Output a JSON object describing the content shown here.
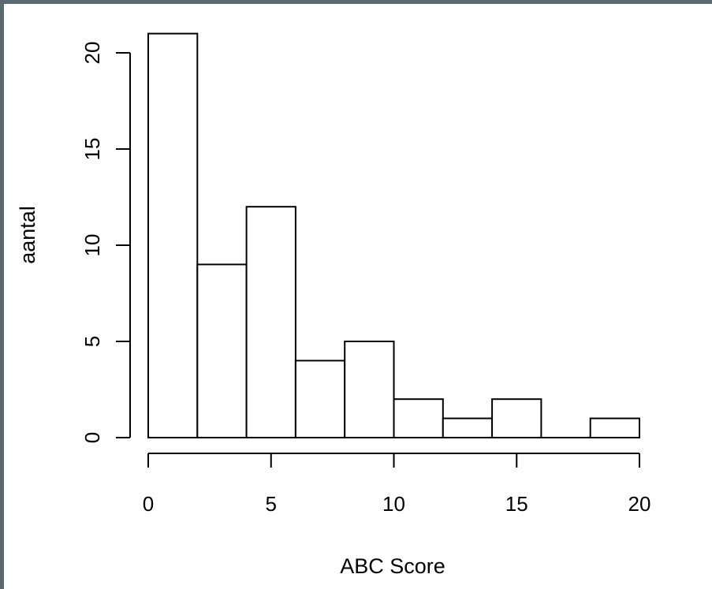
{
  "chart_data": {
    "type": "bar",
    "subtype": "histogram",
    "bins": [
      {
        "x0": 0,
        "x1": 2,
        "count": 21
      },
      {
        "x0": 2,
        "x1": 4,
        "count": 9
      },
      {
        "x0": 4,
        "x1": 6,
        "count": 12
      },
      {
        "x0": 6,
        "x1": 8,
        "count": 4
      },
      {
        "x0": 8,
        "x1": 10,
        "count": 5
      },
      {
        "x0": 10,
        "x1": 12,
        "count": 2
      },
      {
        "x0": 12,
        "x1": 14,
        "count": 1
      },
      {
        "x0": 14,
        "x1": 16,
        "count": 2
      },
      {
        "x0": 16,
        "x1": 18,
        "count": 0
      },
      {
        "x0": 18,
        "x1": 20,
        "count": 1
      }
    ],
    "title": "",
    "xlabel": "ABC Score",
    "ylabel": "aantal",
    "xlim": [
      0,
      20
    ],
    "ylim": [
      0,
      21
    ],
    "x_ticks": [
      0,
      5,
      10,
      15,
      20
    ],
    "y_ticks": [
      0,
      5,
      10,
      15,
      20
    ],
    "grid": false,
    "bar_fill": "#ffffff",
    "bar_stroke": "#000000",
    "background": "#ffffff",
    "frame_color": "#5a6a70"
  }
}
